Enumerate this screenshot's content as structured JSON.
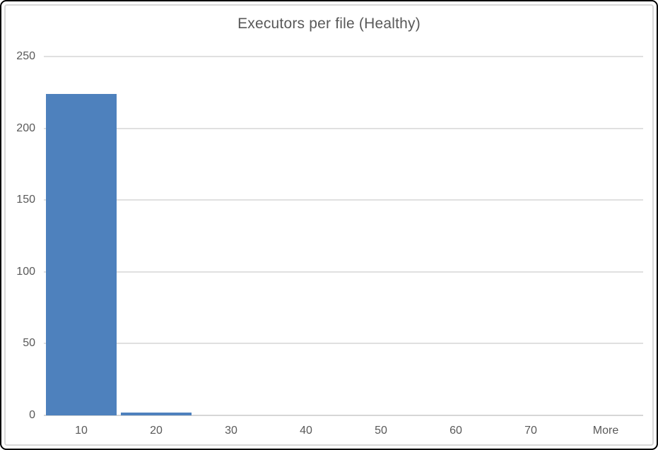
{
  "chart_data": {
    "type": "bar",
    "title": "Executors per file (Healthy)",
    "categories": [
      "10",
      "20",
      "30",
      "40",
      "50",
      "60",
      "70",
      "More"
    ],
    "values": [
      224,
      2,
      0,
      0,
      0,
      0,
      0,
      0
    ],
    "xlabel": "",
    "ylabel": "",
    "ylim": [
      0,
      250
    ],
    "yticks": [
      0,
      50,
      100,
      150,
      200,
      250
    ],
    "grid": true,
    "legend": false,
    "gap_ratio": 0.03
  },
  "colors": {
    "bar": "#4e81bd",
    "text": "#595959",
    "gridline": "#e0e0e0",
    "axis_line": "#d6d6d6",
    "chart_frame": "#d9d9d9",
    "window_border": "#000000",
    "background": "#ffffff"
  }
}
